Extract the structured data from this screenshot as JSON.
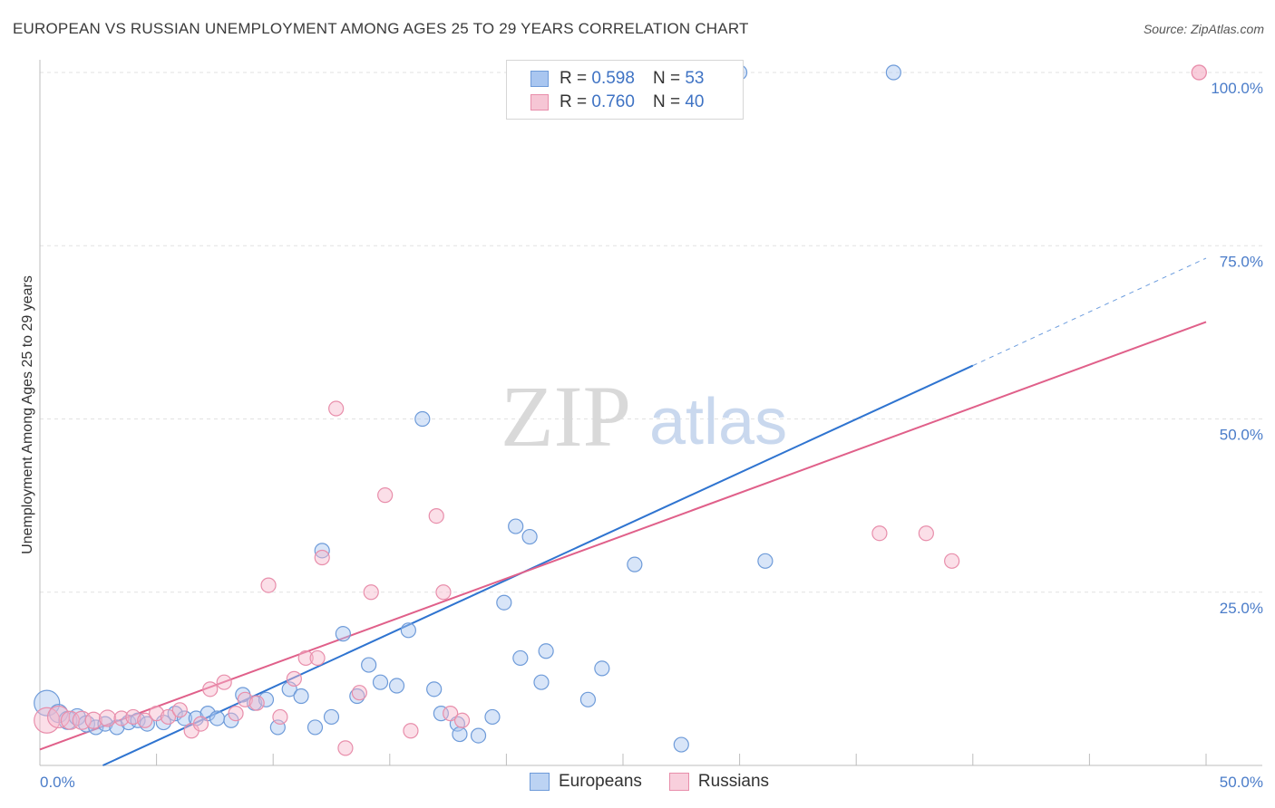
{
  "title": "EUROPEAN VS RUSSIAN UNEMPLOYMENT AMONG AGES 25 TO 29 YEARS CORRELATION CHART",
  "source": "Source: ZipAtlas.com",
  "watermark": {
    "zip": "ZIP",
    "atlas": "atlas"
  },
  "legend": {
    "rows": [
      {
        "r_label": "R =",
        "r_value": "0.598",
        "n_label": "N =",
        "n_value": "53"
      },
      {
        "r_label": "R =",
        "r_value": "0.760",
        "n_label": "N =",
        "n_value": "40"
      }
    ]
  },
  "bottom_legend": {
    "europeans": "Europeans",
    "russians": "Russians"
  },
  "colors": {
    "europeans_fill": "#a9c6f0",
    "europeans_stroke": "#6e9bd9",
    "europeans_line": "#2f74d0",
    "russians_fill": "#f6b9cb",
    "russians_stroke": "#e88eab",
    "russians_line": "#e0608a",
    "tick_text": "#4a7cc9",
    "grid": "#e2e2e2"
  },
  "chart_data": {
    "type": "scatter",
    "title": "EUROPEAN VS RUSSIAN UNEMPLOYMENT AMONG AGES 25 TO 29 YEARS CORRELATION CHART",
    "xlabel": "",
    "ylabel": "Unemployment Among Ages 25 to 29 years",
    "xlim": [
      0,
      50
    ],
    "ylim": [
      0,
      100
    ],
    "x_tick_labels": [
      "0.0%",
      "50.0%"
    ],
    "y_tick_labels": [
      "25.0%",
      "50.0%",
      "75.0%",
      "100.0%"
    ],
    "y_ticks": [
      25,
      50,
      75,
      100
    ],
    "grid": true,
    "legend_position": "top-center",
    "series": [
      {
        "name": "Europeans",
        "r": 0.598,
        "n": 53,
        "trend": {
          "x0": 2.7,
          "y0": 0,
          "x1": 40,
          "y1": 57.7,
          "dashed_to_x": 50,
          "dashed_to_y": 73.2
        },
        "points": [
          [
            0.3,
            9.0,
            14
          ],
          [
            0.8,
            7.5,
            10
          ],
          [
            1.2,
            6.5,
            10
          ],
          [
            1.6,
            7.0,
            9
          ],
          [
            2.0,
            6.0,
            9
          ],
          [
            2.4,
            5.5,
            8
          ],
          [
            2.8,
            6.0,
            8
          ],
          [
            3.3,
            5.5,
            8
          ],
          [
            3.8,
            6.2,
            8
          ],
          [
            4.2,
            6.5,
            8
          ],
          [
            4.6,
            6.0,
            8
          ],
          [
            5.3,
            6.2,
            8
          ],
          [
            5.8,
            7.5,
            8
          ],
          [
            6.2,
            6.8,
            8
          ],
          [
            6.7,
            6.8,
            8
          ],
          [
            7.2,
            7.5,
            8
          ],
          [
            7.6,
            6.8,
            8
          ],
          [
            8.2,
            6.5,
            8
          ],
          [
            8.7,
            10.2,
            8
          ],
          [
            9.2,
            9.0,
            8
          ],
          [
            9.7,
            9.5,
            8
          ],
          [
            10.2,
            5.5,
            8
          ],
          [
            10.7,
            11.0,
            8
          ],
          [
            11.2,
            10.0,
            8
          ],
          [
            11.8,
            5.5,
            8
          ],
          [
            12.1,
            31.0,
            8
          ],
          [
            12.5,
            7.0,
            8
          ],
          [
            13.0,
            19.0,
            8
          ],
          [
            13.6,
            10.0,
            8
          ],
          [
            14.1,
            14.5,
            8
          ],
          [
            14.6,
            12.0,
            8
          ],
          [
            15.3,
            11.5,
            8
          ],
          [
            15.8,
            19.5,
            8
          ],
          [
            16.4,
            50.0,
            8
          ],
          [
            16.9,
            11.0,
            8
          ],
          [
            17.2,
            7.5,
            8
          ],
          [
            17.9,
            6.0,
            8
          ],
          [
            18.0,
            4.5,
            8
          ],
          [
            18.8,
            4.3,
            8
          ],
          [
            19.4,
            7.0,
            8
          ],
          [
            19.9,
            23.5,
            8
          ],
          [
            20.4,
            34.5,
            8
          ],
          [
            20.6,
            15.5,
            8
          ],
          [
            21.0,
            33.0,
            8
          ],
          [
            21.5,
            12.0,
            8
          ],
          [
            21.7,
            16.5,
            8
          ],
          [
            23.5,
            9.5,
            8
          ],
          [
            24.1,
            14.0,
            8
          ],
          [
            25.5,
            29.0,
            8
          ],
          [
            27.5,
            3.0,
            8
          ],
          [
            30.0,
            100.0,
            8
          ],
          [
            31.1,
            29.5,
            8
          ],
          [
            36.6,
            100.0,
            8
          ]
        ]
      },
      {
        "name": "Russians",
        "r": 0.76,
        "n": 40,
        "trend": {
          "x0": 0,
          "y0": 2.3,
          "x1": 50,
          "y1": 64.0
        },
        "points": [
          [
            0.3,
            6.5,
            14
          ],
          [
            0.8,
            7.0,
            12
          ],
          [
            1.3,
            6.5,
            10
          ],
          [
            1.8,
            6.5,
            10
          ],
          [
            2.3,
            6.5,
            9
          ],
          [
            2.9,
            6.8,
            9
          ],
          [
            3.5,
            6.8,
            8
          ],
          [
            4.0,
            7.0,
            8
          ],
          [
            4.5,
            6.5,
            8
          ],
          [
            5.0,
            7.5,
            8
          ],
          [
            5.5,
            7.0,
            8
          ],
          [
            6.0,
            8.0,
            8
          ],
          [
            6.5,
            5.0,
            8
          ],
          [
            6.9,
            6.0,
            8
          ],
          [
            7.3,
            11.0,
            8
          ],
          [
            7.9,
            12.0,
            8
          ],
          [
            8.4,
            7.5,
            8
          ],
          [
            8.8,
            9.5,
            8
          ],
          [
            9.3,
            9.0,
            8
          ],
          [
            9.8,
            26.0,
            8
          ],
          [
            10.3,
            7.0,
            8
          ],
          [
            10.9,
            12.5,
            8
          ],
          [
            11.4,
            15.5,
            8
          ],
          [
            11.9,
            15.5,
            8
          ],
          [
            12.1,
            30.0,
            8
          ],
          [
            12.7,
            51.5,
            8
          ],
          [
            13.1,
            2.5,
            8
          ],
          [
            13.7,
            10.5,
            8
          ],
          [
            14.2,
            25.0,
            8
          ],
          [
            14.8,
            39.0,
            8
          ],
          [
            15.9,
            5.0,
            8
          ],
          [
            17.0,
            36.0,
            8
          ],
          [
            17.3,
            25.0,
            8
          ],
          [
            17.6,
            7.5,
            8
          ],
          [
            18.1,
            6.5,
            8
          ],
          [
            36.0,
            33.5,
            8
          ],
          [
            38.0,
            33.5,
            8
          ],
          [
            39.1,
            29.5,
            8
          ],
          [
            49.7,
            100.0,
            8
          ],
          [
            49.7,
            100.0,
            8
          ]
        ]
      }
    ]
  }
}
